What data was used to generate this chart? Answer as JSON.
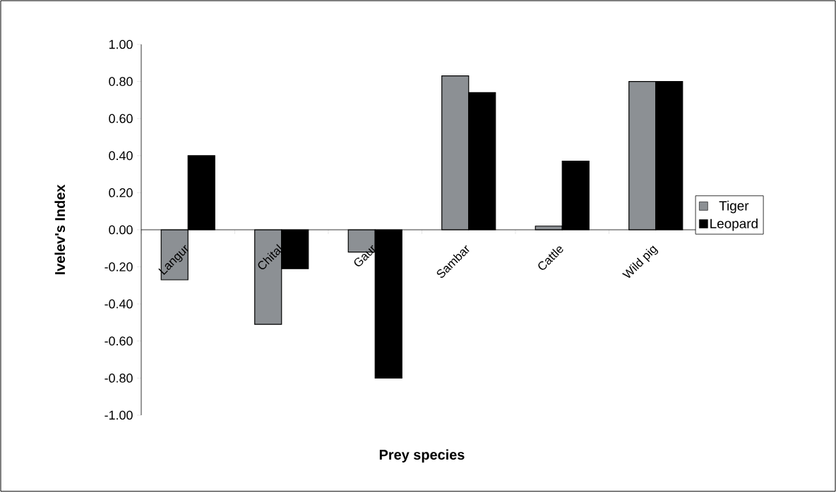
{
  "chart_data": {
    "type": "bar",
    "xlabel": "Prey species",
    "ylabel": "Ivelev's Index",
    "categories": [
      "Langur",
      "Chital",
      "Gaur",
      "Sambar",
      "Cattle",
      "Wild pig"
    ],
    "series": [
      {
        "name": "Tiger",
        "color": "#8c9094",
        "values": [
          -0.27,
          -0.51,
          -0.12,
          0.83,
          0.02,
          0.8
        ]
      },
      {
        "name": "Leopard",
        "color": "#000000",
        "values": [
          0.4,
          -0.21,
          -0.8,
          0.74,
          0.37,
          0.8
        ]
      }
    ],
    "ylim": [
      -1,
      1
    ],
    "yticks": [
      {
        "value": -1,
        "label": "-1.00"
      },
      {
        "value": -0.8,
        "label": "-0.80"
      },
      {
        "value": -0.6,
        "label": "-0.60"
      },
      {
        "value": -0.4,
        "label": "-0.40"
      },
      {
        "value": -0.2,
        "label": "-0.20"
      },
      {
        "value": 0,
        "label": "0.00"
      },
      {
        "value": 0.2,
        "label": "0.20"
      },
      {
        "value": 0.4,
        "label": "0.40"
      },
      {
        "value": 0.6,
        "label": "0.60"
      },
      {
        "value": 0.8,
        "label": "0.80"
      },
      {
        "value": 1,
        "label": "1.00"
      }
    ],
    "legend": "right"
  }
}
